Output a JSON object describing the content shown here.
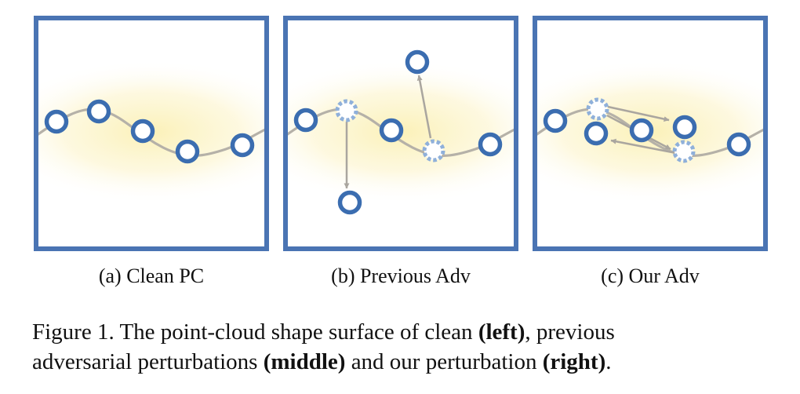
{
  "colors": {
    "frame": "#4a74b3",
    "point_stroke": "#3b6db0",
    "perturbed_stroke": "#8fb0da",
    "surface_curve": "#b5b1a8",
    "arrow": "#aaa69f",
    "glow": "#fbf1b8"
  },
  "panels": [
    {
      "id": "a",
      "sublabel": "(a) Clean PC"
    },
    {
      "id": "b",
      "sublabel": "(b) Previous Adv"
    },
    {
      "id": "c",
      "sublabel": "(c) Our Adv"
    }
  ],
  "caption": {
    "line1_prefix": "Figure 1.  The point-cloud shape surface of clean ",
    "line1_bold": "(left)",
    "line1_suffix": ", previous",
    "line2_prefix": "adversarial perturbations ",
    "line2_bold1": "(middle)",
    "line2_mid": " and our perturbation ",
    "line2_bold2": "(right)",
    "line2_suffix": "."
  }
}
